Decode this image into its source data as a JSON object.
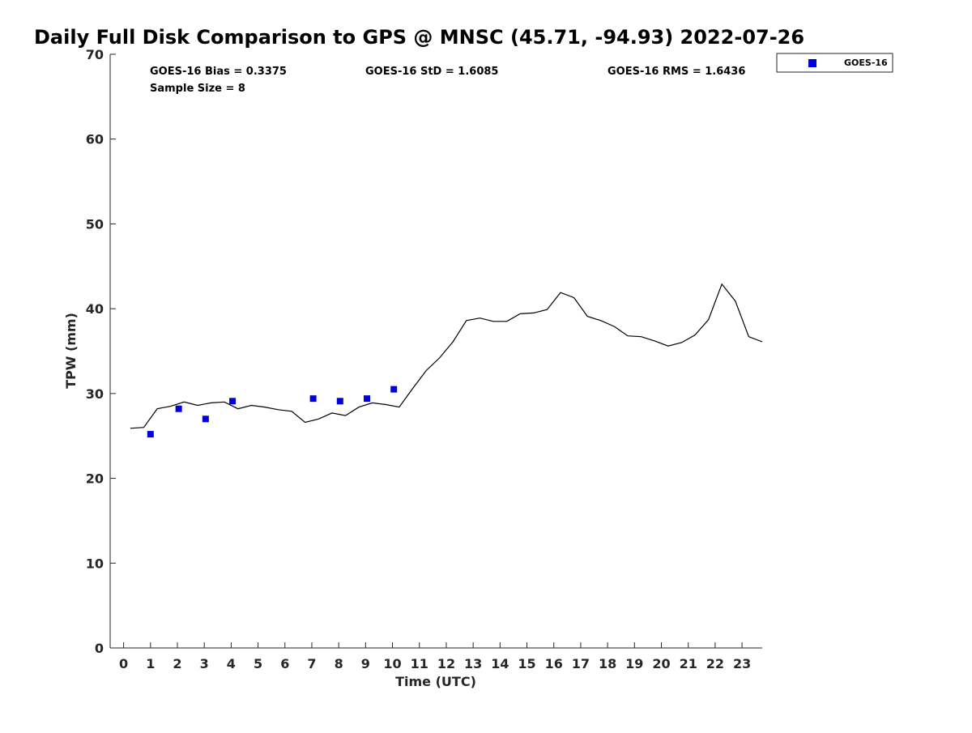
{
  "chart_data": {
    "type": "scatter",
    "title": "Daily Full Disk Comparison to GPS @ MNSC (45.71, -94.93) 2022-07-26",
    "xlabel": "Time (UTC)",
    "ylabel": "TPW (mm)",
    "xlim": [
      -0.5,
      23.75
    ],
    "ylim": [
      0,
      70
    ],
    "x_ticks": [
      0,
      1,
      2,
      3,
      4,
      5,
      6,
      7,
      8,
      9,
      10,
      11,
      12,
      13,
      14,
      15,
      16,
      17,
      18,
      19,
      20,
      21,
      22,
      23
    ],
    "y_ticks": [
      0,
      10,
      20,
      30,
      40,
      50,
      60,
      70
    ],
    "grid": false,
    "legend_position": "top-right, outside plot",
    "stats": {
      "bias": "GOES-16 Bias = 0.3375",
      "std": "GOES-16 StD = 1.6085",
      "rms": "GOES-16 RMS = 1.6436",
      "sample_size": "Sample Size = 8"
    },
    "series": [
      {
        "name": "GOES-16",
        "kind": "scatter",
        "marker": "square",
        "color": "#0000dd",
        "points": [
          [
            1.0,
            25.2
          ],
          [
            2.05,
            28.2
          ],
          [
            3.05,
            27.0
          ],
          [
            4.05,
            29.1
          ],
          [
            7.05,
            29.4
          ],
          [
            8.05,
            29.1
          ],
          [
            9.05,
            29.4
          ],
          [
            10.05,
            30.5
          ]
        ]
      },
      {
        "kind": "line",
        "color": "#000000",
        "points": [
          [
            0.25,
            25.9
          ],
          [
            0.75,
            26.0
          ],
          [
            1.25,
            28.2
          ],
          [
            1.75,
            28.5
          ],
          [
            2.25,
            29.0
          ],
          [
            2.75,
            28.6
          ],
          [
            3.25,
            28.9
          ],
          [
            3.75,
            29.0
          ],
          [
            4.25,
            28.2
          ],
          [
            4.75,
            28.6
          ],
          [
            5.25,
            28.4
          ],
          [
            5.75,
            28.1
          ],
          [
            6.25,
            27.9
          ],
          [
            6.75,
            26.6
          ],
          [
            7.25,
            27.0
          ],
          [
            7.75,
            27.7
          ],
          [
            8.25,
            27.4
          ],
          [
            8.75,
            28.4
          ],
          [
            9.25,
            28.9
          ],
          [
            9.75,
            28.7
          ],
          [
            10.25,
            28.4
          ],
          [
            10.75,
            30.6
          ],
          [
            11.25,
            32.7
          ],
          [
            11.75,
            34.2
          ],
          [
            12.25,
            36.1
          ],
          [
            12.75,
            38.6
          ],
          [
            13.25,
            38.9
          ],
          [
            13.75,
            38.5
          ],
          [
            14.25,
            38.5
          ],
          [
            14.75,
            39.4
          ],
          [
            15.25,
            39.5
          ],
          [
            15.75,
            39.9
          ],
          [
            16.25,
            41.9
          ],
          [
            16.75,
            41.3
          ],
          [
            17.25,
            39.1
          ],
          [
            17.75,
            38.6
          ],
          [
            18.25,
            37.9
          ],
          [
            18.75,
            36.8
          ],
          [
            19.25,
            36.7
          ],
          [
            19.75,
            36.2
          ],
          [
            20.25,
            35.6
          ],
          [
            20.75,
            36.0
          ],
          [
            21.25,
            36.9
          ],
          [
            21.75,
            38.7
          ],
          [
            22.25,
            42.9
          ],
          [
            22.75,
            40.9
          ],
          [
            23.25,
            36.7
          ],
          [
            23.75,
            36.1
          ]
        ]
      }
    ]
  }
}
